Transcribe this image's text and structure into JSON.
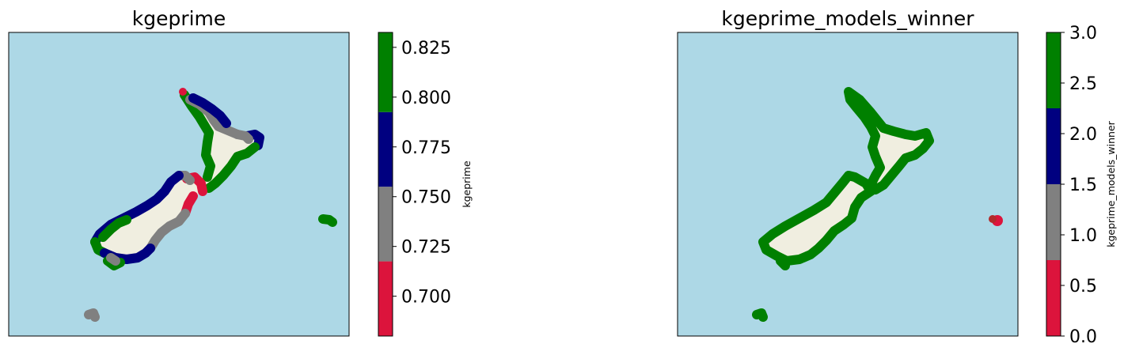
{
  "panels": [
    {
      "title": "kgeprime",
      "colorbar": {
        "label": "kgeprime",
        "vmin": 0.68,
        "vmax": 0.8325,
        "bands": [
          {
            "from": 0.68,
            "to": 0.7175,
            "color": "#dc143c"
          },
          {
            "from": 0.7175,
            "to": 0.755,
            "color": "#808080"
          },
          {
            "from": 0.755,
            "to": 0.7925,
            "color": "#000080"
          },
          {
            "from": 0.7925,
            "to": 0.8325,
            "color": "#008000"
          }
        ],
        "ticks": [
          0.7,
          0.725,
          0.75,
          0.775,
          0.8,
          0.825
        ],
        "tick_labels": [
          "0.700",
          "0.725",
          "0.750",
          "0.775",
          "0.800",
          "0.825"
        ]
      }
    },
    {
      "title": "kgeprime_models_winner",
      "colorbar": {
        "label": "kgeprime_models_winner",
        "vmin": 0.0,
        "vmax": 3.0,
        "bands": [
          {
            "from": 0.0,
            "to": 0.75,
            "color": "#dc143c"
          },
          {
            "from": 0.75,
            "to": 1.5,
            "color": "#808080"
          },
          {
            "from": 1.5,
            "to": 2.25,
            "color": "#000080"
          },
          {
            "from": 2.25,
            "to": 3.0,
            "color": "#008000"
          }
        ],
        "ticks": [
          0.0,
          0.5,
          1.0,
          1.5,
          2.0,
          2.5,
          3.0
        ],
        "tick_labels": [
          "0.0",
          "0.5",
          "1.0",
          "1.5",
          "2.0",
          "2.5",
          "3.0"
        ]
      }
    }
  ],
  "colors": {
    "ocean": "#add8e6",
    "land": "#f0eee0",
    "red": "#dc143c",
    "gray": "#808080",
    "navy": "#000080",
    "green": "#008000"
  }
}
